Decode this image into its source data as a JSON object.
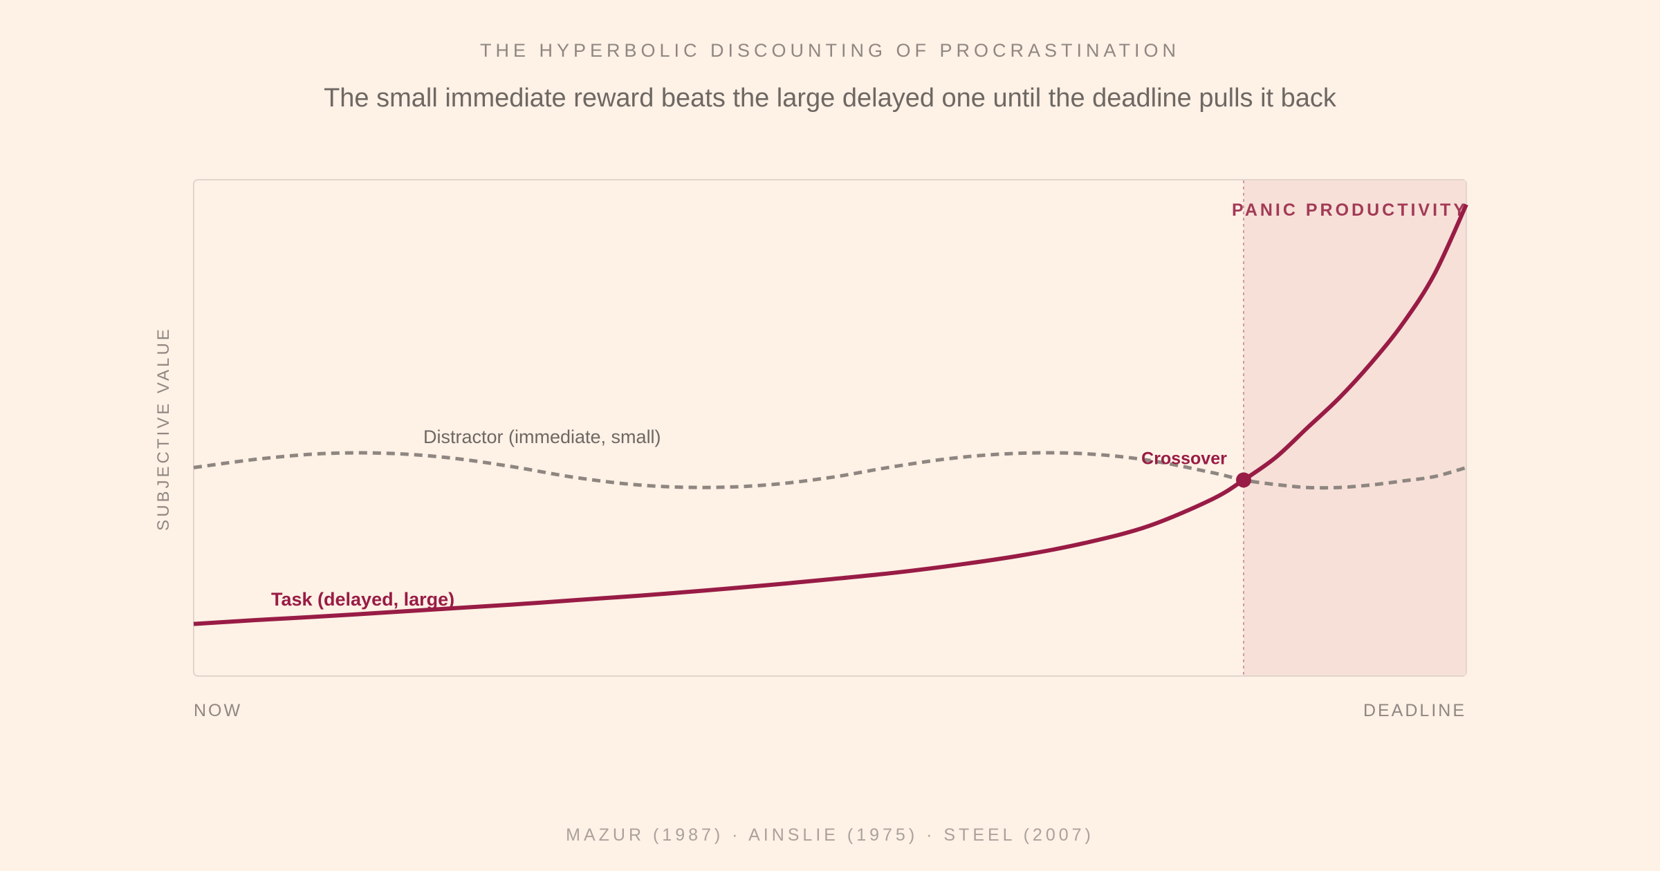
{
  "chart_data": {
    "type": "line",
    "kicker": "THE HYPERBOLIC DISCOUNTING OF PROCRASTINATION",
    "title": "The small immediate reward beats the large delayed one until the deadline pulls it back",
    "ylabel": "SUBJECTIVE VALUE",
    "x_start_label": "NOW",
    "x_end_label": "DEADLINE",
    "xlim": [
      0,
      1
    ],
    "ylim": [
      0,
      1
    ],
    "grid": false,
    "zone": {
      "label": "PANIC PRODUCTIVITY",
      "x_start": 0.825,
      "x_end": 1.0
    },
    "series": [
      {
        "name": "Task (delayed, large)",
        "style": "solid",
        "color": "#981c45",
        "x": [
          0,
          0.05,
          0.1,
          0.15,
          0.2,
          0.25,
          0.3,
          0.35,
          0.4,
          0.45,
          0.5,
          0.55,
          0.6,
          0.65,
          0.7,
          0.75,
          0.8,
          0.825,
          0.85,
          0.875,
          0.9,
          0.925,
          0.95,
          0.975,
          1.0
        ],
        "values": [
          0.105,
          0.113,
          0.12,
          0.128,
          0.136,
          0.144,
          0.153,
          0.162,
          0.172,
          0.183,
          0.195,
          0.208,
          0.224,
          0.243,
          0.268,
          0.302,
          0.356,
          0.395,
          0.44,
          0.5,
          0.56,
          0.63,
          0.71,
          0.81,
          0.95
        ]
      },
      {
        "name": "Distractor (immediate, small)",
        "style": "dashed",
        "color": "#8e8680",
        "x": [
          0,
          0.05,
          0.1,
          0.15,
          0.2,
          0.25,
          0.3,
          0.35,
          0.4,
          0.45,
          0.5,
          0.55,
          0.6,
          0.65,
          0.7,
          0.75,
          0.8,
          0.825,
          0.85,
          0.875,
          0.9,
          0.925,
          0.95,
          0.975,
          1.0
        ],
        "values": [
          0.42,
          0.437,
          0.448,
          0.449,
          0.44,
          0.422,
          0.4,
          0.385,
          0.38,
          0.385,
          0.4,
          0.422,
          0.44,
          0.449,
          0.448,
          0.435,
          0.41,
          0.395,
          0.386,
          0.38,
          0.38,
          0.385,
          0.393,
          0.402,
          0.42
        ]
      }
    ],
    "annotations": [
      {
        "text": "Crossover",
        "x": 0.825,
        "y": 0.395
      }
    ],
    "source": "MAZUR (1987) · AINSLIE (1975) · STEEL (2007)"
  },
  "colors": {
    "background": "#fef1e6",
    "zone_fill": "#f6e0d8",
    "accent": "#981c45",
    "muted": "#8e8680"
  }
}
